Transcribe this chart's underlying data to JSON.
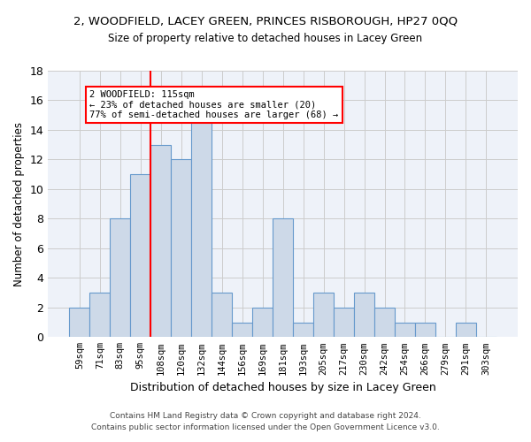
{
  "title_line1": "2, WOODFIELD, LACEY GREEN, PRINCES RISBOROUGH, HP27 0QQ",
  "title_line2": "Size of property relative to detached houses in Lacey Green",
  "xlabel": "Distribution of detached houses by size in Lacey Green",
  "ylabel": "Number of detached properties",
  "bar_labels": [
    "59sqm",
    "71sqm",
    "83sqm",
    "95sqm",
    "108sqm",
    "120sqm",
    "132sqm",
    "144sqm",
    "156sqm",
    "169sqm",
    "181sqm",
    "193sqm",
    "205sqm",
    "217sqm",
    "230sqm",
    "242sqm",
    "254sqm",
    "266sqm",
    "279sqm",
    "291sqm",
    "303sqm"
  ],
  "bar_values": [
    2,
    3,
    8,
    11,
    13,
    12,
    15,
    3,
    1,
    2,
    8,
    1,
    3,
    2,
    3,
    2,
    1,
    1,
    0,
    1,
    0
  ],
  "bar_color": "#cdd9e8",
  "bar_edge_color": "#6699cc",
  "vline_color": "red",
  "annotation_text": "2 WOODFIELD: 115sqm\n← 23% of detached houses are smaller (20)\n77% of semi-detached houses are larger (68) →",
  "annotation_box_edge": "red",
  "ylim": [
    0,
    18
  ],
  "yticks": [
    0,
    2,
    4,
    6,
    8,
    10,
    12,
    14,
    16,
    18
  ],
  "footer_line1": "Contains HM Land Registry data © Crown copyright and database right 2024.",
  "footer_line2": "Contains public sector information licensed under the Open Government Licence v3.0.",
  "background_color": "#eef2f9",
  "grid_color": "#cccccc"
}
